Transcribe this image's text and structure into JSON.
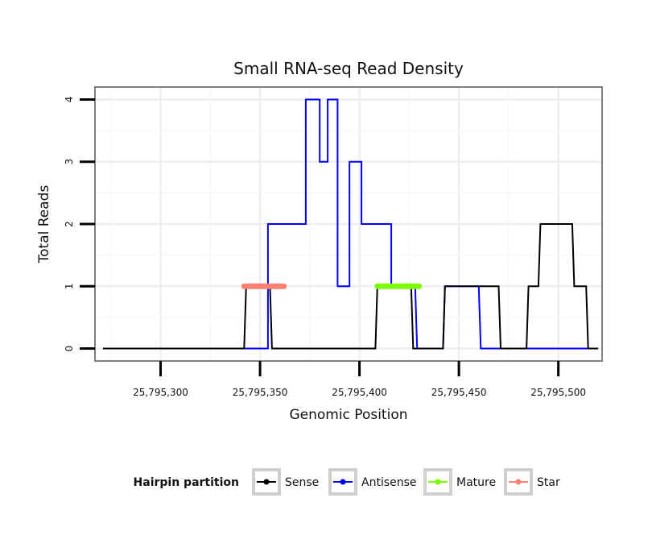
{
  "chart_data": {
    "type": "line",
    "title": "Small RNA-seq Read Density",
    "xlabel": "Genomic Position",
    "ylabel": "Total Reads",
    "xlim": [
      25795267,
      25795522
    ],
    "ylim": [
      -0.2,
      4.2
    ],
    "x_ticks": [
      25795300,
      25795350,
      25795400,
      25795450,
      25795500
    ],
    "x_tick_labels": [
      "25,795,300",
      "25,795,350",
      "25,795,400",
      "25,795,450",
      "25,795,500"
    ],
    "y_ticks": [
      0,
      1,
      2,
      3,
      4
    ],
    "y_tick_labels": [
      "0",
      "1",
      "2",
      "3",
      "4"
    ],
    "grid": true,
    "legend": {
      "title": "Hairpin partition",
      "position": "bottom",
      "entries": [
        {
          "name": "Sense",
          "color": "#000000"
        },
        {
          "name": "Antisense",
          "color": "#0000ff"
        },
        {
          "name": "Mature",
          "color": "#7cfc00"
        },
        {
          "name": "Star",
          "color": "#fa8072"
        }
      ]
    },
    "series": [
      {
        "name": "Antisense",
        "color": "#0000ff",
        "x": [
          25795271,
          25795342,
          25795343,
          25795354,
          25795354,
          25795362,
          25795362,
          25795373,
          25795373,
          25795380,
          25795380,
          25795384,
          25795384,
          25795389,
          25795389,
          25795395,
          25795395,
          25795401,
          25795401,
          25795404,
          25795404,
          25795416,
          25795416,
          25795428,
          25795429,
          25795442,
          25795443,
          25795460,
          25795461,
          25795520
        ],
        "values": [
          0,
          0,
          0,
          0,
          2,
          2,
          2,
          2,
          4,
          4,
          3,
          3,
          4,
          4,
          1,
          1,
          3,
          3,
          2,
          2,
          2,
          2,
          1,
          1,
          0,
          0,
          1,
          1,
          0,
          0
        ]
      },
      {
        "name": "Sense",
        "color": "#000000",
        "x": [
          25795271,
          25795342,
          25795343,
          25795355,
          25795356,
          25795408,
          25795409,
          25795426,
          25795427,
          25795442,
          25795443,
          25795460,
          25795461,
          25795470,
          25795471,
          25795476,
          25795477,
          25795484,
          25795485,
          25795490,
          25795491,
          25795507,
          25795508,
          25795514,
          25795515,
          25795520
        ],
        "values": [
          0,
          0,
          1,
          1,
          0,
          0,
          1,
          1,
          0,
          0,
          1,
          1,
          1,
          1,
          0,
          0,
          0,
          0,
          1,
          1,
          2,
          2,
          1,
          1,
          0,
          0
        ]
      },
      {
        "name": "Star",
        "color": "#fa8072",
        "type": "segment",
        "x": [
          25795342,
          25795362
        ],
        "values": [
          1,
          1
        ]
      },
      {
        "name": "Mature",
        "color": "#7cfc00",
        "type": "segment",
        "x": [
          25795409,
          25795430
        ],
        "values": [
          1,
          1
        ]
      }
    ]
  }
}
